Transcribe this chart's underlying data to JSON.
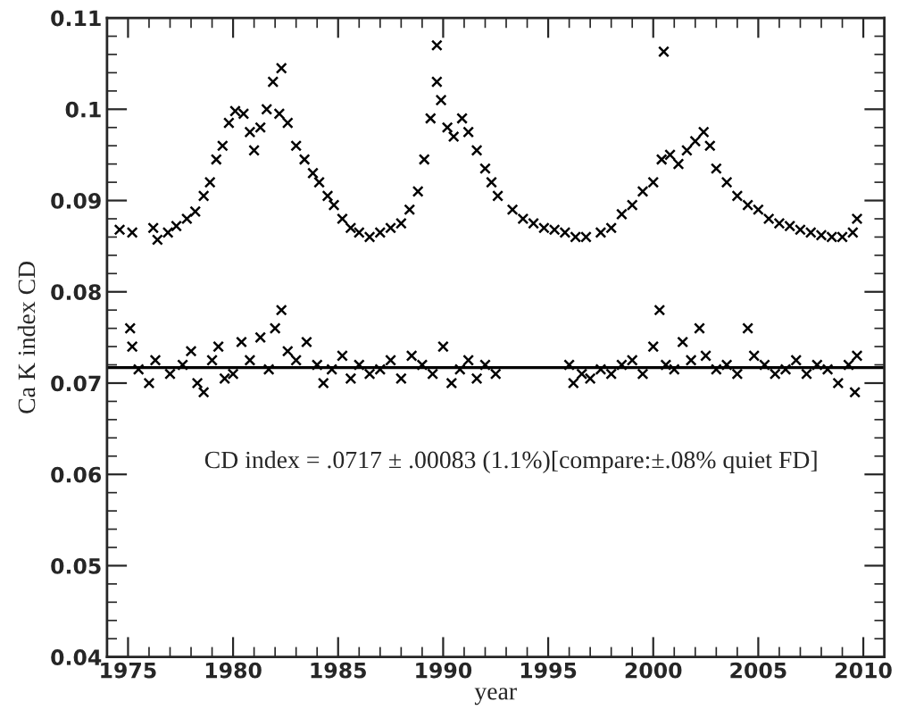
{
  "chart_data": {
    "type": "scatter",
    "xlabel": "year",
    "ylabel": "Ca K index CD",
    "annotations": [
      "CD index = .0717 ± .00083 (1.1%)[compare:±.08% quiet FD]"
    ],
    "xlim": [
      1974,
      2011
    ],
    "xticks": [
      1975,
      {
        "value": 1976,
        "label": null
      },
      {
        "value": 1977,
        "label": null
      },
      {
        "value": 1978,
        "label": null
      },
      {
        "value": 1979,
        "label": null
      },
      1980,
      {
        "value": 1981,
        "label": null
      },
      {
        "value": 1982,
        "label": null
      },
      {
        "value": 1983,
        "label": null
      },
      {
        "value": 1984,
        "label": null
      },
      1985,
      {
        "value": 1986,
        "label": null
      },
      {
        "value": 1987,
        "label": null
      },
      {
        "value": 1988,
        "label": null
      },
      {
        "value": 1989,
        "label": null
      },
      1990,
      {
        "value": 1991,
        "label": null
      },
      {
        "value": 1992,
        "label": null
      },
      {
        "value": 1993,
        "label": null
      },
      {
        "value": 1994,
        "label": null
      },
      1995,
      {
        "value": 1996,
        "label": null
      },
      {
        "value": 1997,
        "label": null
      },
      {
        "value": 1998,
        "label": null
      },
      {
        "value": 1999,
        "label": null
      },
      2000,
      {
        "value": 2001,
        "label": null
      },
      {
        "value": 2002,
        "label": null
      },
      {
        "value": 2003,
        "label": null
      },
      {
        "value": 2004,
        "label": null
      },
      2005,
      {
        "value": 2006,
        "label": null
      },
      {
        "value": 2007,
        "label": null
      },
      {
        "value": 2008,
        "label": null
      },
      {
        "value": 2009,
        "label": null
      },
      2010
    ],
    "ylim": [
      0.04,
      0.11
    ],
    "yticks": [
      0.04,
      {
        "value": 0.042,
        "label": null
      },
      {
        "value": 0.044,
        "label": null
      },
      {
        "value": 0.046,
        "label": null
      },
      {
        "value": 0.048,
        "label": null
      },
      0.05,
      {
        "value": 0.052,
        "label": null
      },
      {
        "value": 0.054,
        "label": null
      },
      {
        "value": 0.056,
        "label": null
      },
      {
        "value": 0.058,
        "label": null
      },
      0.06,
      {
        "value": 0.062,
        "label": null
      },
      {
        "value": 0.064,
        "label": null
      },
      {
        "value": 0.066,
        "label": null
      },
      {
        "value": 0.068,
        "label": null
      },
      0.07,
      {
        "value": 0.072,
        "label": null
      },
      {
        "value": 0.074,
        "label": null
      },
      {
        "value": 0.076,
        "label": null
      },
      {
        "value": 0.078,
        "label": null
      },
      0.08,
      {
        "value": 0.082,
        "label": null
      },
      {
        "value": 0.084,
        "label": null
      },
      {
        "value": 0.086,
        "label": null
      },
      {
        "value": 0.088,
        "label": null
      },
      0.09,
      {
        "value": 0.092,
        "label": null
      },
      {
        "value": 0.094,
        "label": null
      },
      {
        "value": 0.096,
        "label": null
      },
      {
        "value": 0.098,
        "label": null
      },
      0.1,
      {
        "value": 0.102,
        "label": null
      },
      {
        "value": 0.104,
        "label": null
      },
      {
        "value": 0.106,
        "label": null
      },
      {
        "value": 0.108,
        "label": null
      },
      0.11
    ],
    "marker": "cross",
    "grid": false,
    "legend": false,
    "ref_lines": [
      {
        "axis": "y",
        "value": 0.0717,
        "color": "#000000",
        "line_style": "solid"
      }
    ],
    "series": [
      {
        "color": "#000000",
        "x": [
          1974.6,
          1975.2,
          1976.2,
          1976.4,
          1976.9,
          1977.3,
          1977.8,
          1978.2,
          1978.6,
          1978.9,
          1979.2,
          1979.5,
          1979.8,
          1980.1,
          1980.5,
          1980.8,
          1981.0,
          1981.3,
          1981.6,
          1981.9,
          1982.2,
          1982.3,
          1982.6,
          1983.0,
          1983.4,
          1983.8,
          1984.1,
          1984.5,
          1984.8,
          1985.2,
          1985.6,
          1986.0,
          1986.5,
          1987.0,
          1987.5,
          1988.0,
          1988.4,
          1988.8,
          1989.1,
          1989.4,
          1989.7,
          1989.7,
          1989.9,
          1990.2,
          1990.5,
          1990.9,
          1991.2,
          1991.6,
          1992.0,
          1992.3,
          1992.6,
          1993.3,
          1993.8,
          1994.3,
          1994.8,
          1995.3,
          1995.8,
          1996.3,
          1996.8,
          1997.5,
          1998.0,
          1998.5,
          1999.0,
          1999.5,
          2000.0,
          2000.4,
          2000.5,
          2000.8,
          2001.2,
          2001.6,
          2002.0,
          2002.4,
          2002.7,
          2003.0,
          2003.5,
          2004.0,
          2004.5,
          2005.0,
          2005.5,
          2006.0,
          2006.5,
          2007.0,
          2007.5,
          2008.0,
          2008.5,
          2009.0,
          2009.5,
          2009.7
        ],
        "values": [
          0.0868,
          0.0865,
          0.087,
          0.0857,
          0.0865,
          0.0872,
          0.088,
          0.0888,
          0.0905,
          0.092,
          0.0945,
          0.096,
          0.0985,
          0.0998,
          0.0995,
          0.0975,
          0.0955,
          0.098,
          0.1,
          0.103,
          0.0995,
          0.1045,
          0.0985,
          0.096,
          0.0945,
          0.093,
          0.092,
          0.0905,
          0.0895,
          0.088,
          0.087,
          0.0865,
          0.086,
          0.0865,
          0.087,
          0.0875,
          0.089,
          0.091,
          0.0945,
          0.099,
          0.103,
          0.107,
          0.101,
          0.098,
          0.097,
          0.099,
          0.0975,
          0.0955,
          0.0935,
          0.092,
          0.0905,
          0.089,
          0.088,
          0.0875,
          0.087,
          0.0868,
          0.0865,
          0.086,
          0.086,
          0.0865,
          0.087,
          0.0885,
          0.0895,
          0.091,
          0.092,
          0.0945,
          0.1063,
          0.095,
          0.094,
          0.0955,
          0.0965,
          0.0975,
          0.096,
          0.0935,
          0.092,
          0.0905,
          0.0895,
          0.089,
          0.088,
          0.0875,
          0.0872,
          0.0868,
          0.0865,
          0.0862,
          0.086,
          0.086,
          0.0865,
          0.088
        ]
      },
      {
        "color": "#000000",
        "x": [
          1975.1,
          1975.2,
          1975.5,
          1976.0,
          1976.3,
          1977.0,
          1977.6,
          1978.0,
          1978.3,
          1978.6,
          1979.0,
          1979.3,
          1979.6,
          1980.0,
          1980.4,
          1980.8,
          1981.3,
          1981.7,
          1982.0,
          1982.3,
          1982.6,
          1983.0,
          1983.5,
          1984.0,
          1984.3,
          1984.7,
          1985.2,
          1985.6,
          1986.0,
          1986.5,
          1987.0,
          1987.5,
          1988.0,
          1988.5,
          1989.0,
          1989.5,
          1990.0,
          1990.4,
          1990.8,
          1991.2,
          1991.6,
          1992.0,
          1992.5,
          1996.0,
          1996.2,
          1996.6,
          1997.0,
          1997.5,
          1998.0,
          1998.5,
          1999.0,
          1999.5,
          2000.0,
          2000.3,
          2000.6,
          2001.0,
          2001.4,
          2001.8,
          2002.2,
          2002.5,
          2003.0,
          2003.5,
          2004.0,
          2004.5,
          2004.8,
          2005.3,
          2005.8,
          2006.3,
          2006.8,
          2007.3,
          2007.8,
          2008.3,
          2008.8,
          2009.3,
          2009.6,
          2009.7
        ],
        "values": [
          0.076,
          0.074,
          0.0715,
          0.07,
          0.0725,
          0.071,
          0.072,
          0.0735,
          0.07,
          0.069,
          0.0725,
          0.074,
          0.0705,
          0.071,
          0.0745,
          0.0725,
          0.075,
          0.0715,
          0.076,
          0.078,
          0.0735,
          0.0725,
          0.0745,
          0.072,
          0.07,
          0.0715,
          0.073,
          0.0705,
          0.072,
          0.071,
          0.0715,
          0.0725,
          0.0705,
          0.073,
          0.072,
          0.071,
          0.074,
          0.07,
          0.0715,
          0.0725,
          0.0705,
          0.072,
          0.071,
          0.072,
          0.07,
          0.071,
          0.0705,
          0.0715,
          0.071,
          0.072,
          0.0725,
          0.071,
          0.074,
          0.078,
          0.072,
          0.0715,
          0.0745,
          0.0725,
          0.076,
          0.073,
          0.0715,
          0.072,
          0.071,
          0.076,
          0.073,
          0.072,
          0.071,
          0.0715,
          0.0725,
          0.071,
          0.072,
          0.0715,
          0.07,
          0.072,
          0.069,
          0.073
        ]
      }
    ]
  }
}
